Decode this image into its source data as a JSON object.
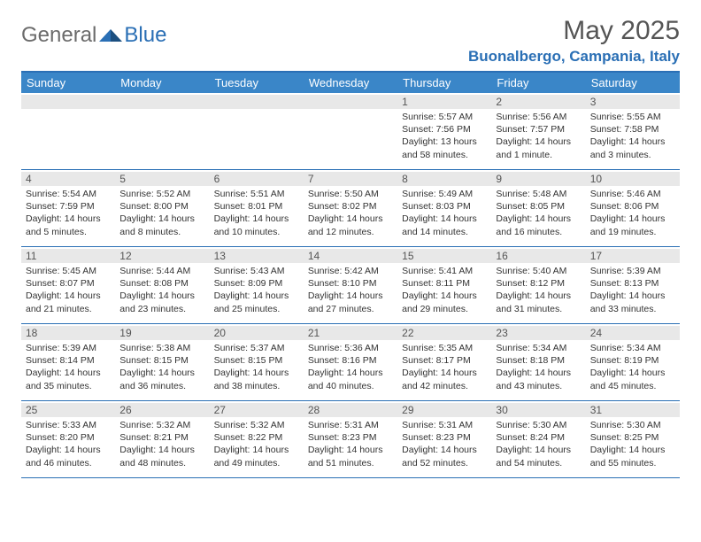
{
  "logo": {
    "text1": "General",
    "text2": "Blue"
  },
  "title": "May 2025",
  "location": "Buonalbergo, Campania, Italy",
  "colors": {
    "header_bg": "#3a86c8",
    "accent": "#2a6fb5",
    "daynum_bg": "#e8e8e8",
    "text": "#333333",
    "muted": "#6b6b6b"
  },
  "day_names": [
    "Sunday",
    "Monday",
    "Tuesday",
    "Wednesday",
    "Thursday",
    "Friday",
    "Saturday"
  ],
  "weeks": [
    [
      null,
      null,
      null,
      null,
      {
        "n": "1",
        "sr": "5:57 AM",
        "ss": "7:56 PM",
        "dl": "13 hours and 58 minutes."
      },
      {
        "n": "2",
        "sr": "5:56 AM",
        "ss": "7:57 PM",
        "dl": "14 hours and 1 minute."
      },
      {
        "n": "3",
        "sr": "5:55 AM",
        "ss": "7:58 PM",
        "dl": "14 hours and 3 minutes."
      }
    ],
    [
      {
        "n": "4",
        "sr": "5:54 AM",
        "ss": "7:59 PM",
        "dl": "14 hours and 5 minutes."
      },
      {
        "n": "5",
        "sr": "5:52 AM",
        "ss": "8:00 PM",
        "dl": "14 hours and 8 minutes."
      },
      {
        "n": "6",
        "sr": "5:51 AM",
        "ss": "8:01 PM",
        "dl": "14 hours and 10 minutes."
      },
      {
        "n": "7",
        "sr": "5:50 AM",
        "ss": "8:02 PM",
        "dl": "14 hours and 12 minutes."
      },
      {
        "n": "8",
        "sr": "5:49 AM",
        "ss": "8:03 PM",
        "dl": "14 hours and 14 minutes."
      },
      {
        "n": "9",
        "sr": "5:48 AM",
        "ss": "8:05 PM",
        "dl": "14 hours and 16 minutes."
      },
      {
        "n": "10",
        "sr": "5:46 AM",
        "ss": "8:06 PM",
        "dl": "14 hours and 19 minutes."
      }
    ],
    [
      {
        "n": "11",
        "sr": "5:45 AM",
        "ss": "8:07 PM",
        "dl": "14 hours and 21 minutes."
      },
      {
        "n": "12",
        "sr": "5:44 AM",
        "ss": "8:08 PM",
        "dl": "14 hours and 23 minutes."
      },
      {
        "n": "13",
        "sr": "5:43 AM",
        "ss": "8:09 PM",
        "dl": "14 hours and 25 minutes."
      },
      {
        "n": "14",
        "sr": "5:42 AM",
        "ss": "8:10 PM",
        "dl": "14 hours and 27 minutes."
      },
      {
        "n": "15",
        "sr": "5:41 AM",
        "ss": "8:11 PM",
        "dl": "14 hours and 29 minutes."
      },
      {
        "n": "16",
        "sr": "5:40 AM",
        "ss": "8:12 PM",
        "dl": "14 hours and 31 minutes."
      },
      {
        "n": "17",
        "sr": "5:39 AM",
        "ss": "8:13 PM",
        "dl": "14 hours and 33 minutes."
      }
    ],
    [
      {
        "n": "18",
        "sr": "5:39 AM",
        "ss": "8:14 PM",
        "dl": "14 hours and 35 minutes."
      },
      {
        "n": "19",
        "sr": "5:38 AM",
        "ss": "8:15 PM",
        "dl": "14 hours and 36 minutes."
      },
      {
        "n": "20",
        "sr": "5:37 AM",
        "ss": "8:15 PM",
        "dl": "14 hours and 38 minutes."
      },
      {
        "n": "21",
        "sr": "5:36 AM",
        "ss": "8:16 PM",
        "dl": "14 hours and 40 minutes."
      },
      {
        "n": "22",
        "sr": "5:35 AM",
        "ss": "8:17 PM",
        "dl": "14 hours and 42 minutes."
      },
      {
        "n": "23",
        "sr": "5:34 AM",
        "ss": "8:18 PM",
        "dl": "14 hours and 43 minutes."
      },
      {
        "n": "24",
        "sr": "5:34 AM",
        "ss": "8:19 PM",
        "dl": "14 hours and 45 minutes."
      }
    ],
    [
      {
        "n": "25",
        "sr": "5:33 AM",
        "ss": "8:20 PM",
        "dl": "14 hours and 46 minutes."
      },
      {
        "n": "26",
        "sr": "5:32 AM",
        "ss": "8:21 PM",
        "dl": "14 hours and 48 minutes."
      },
      {
        "n": "27",
        "sr": "5:32 AM",
        "ss": "8:22 PM",
        "dl": "14 hours and 49 minutes."
      },
      {
        "n": "28",
        "sr": "5:31 AM",
        "ss": "8:23 PM",
        "dl": "14 hours and 51 minutes."
      },
      {
        "n": "29",
        "sr": "5:31 AM",
        "ss": "8:23 PM",
        "dl": "14 hours and 52 minutes."
      },
      {
        "n": "30",
        "sr": "5:30 AM",
        "ss": "8:24 PM",
        "dl": "14 hours and 54 minutes."
      },
      {
        "n": "31",
        "sr": "5:30 AM",
        "ss": "8:25 PM",
        "dl": "14 hours and 55 minutes."
      }
    ]
  ],
  "labels": {
    "sunrise": "Sunrise:",
    "sunset": "Sunset:",
    "daylight": "Daylight:"
  }
}
